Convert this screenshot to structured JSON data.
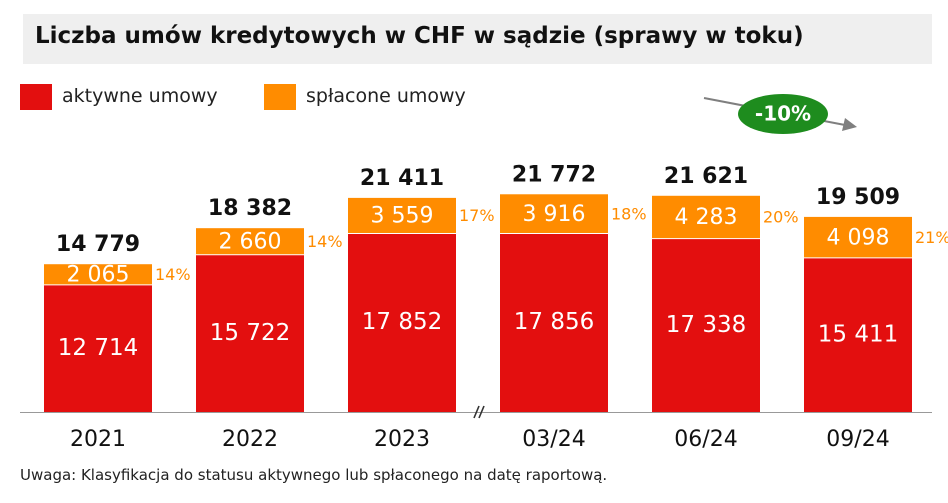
{
  "title": "Liczba umów kredytowych w CHF w sądzie (sprawy w toku)",
  "legend": [
    {
      "label": "aktywne umowy",
      "color": "#e30f0f"
    },
    {
      "label": "spłacone umowy",
      "color": "#ff8c00"
    }
  ],
  "trend_badge": {
    "label": "-10%",
    "color": "#1e8c1e"
  },
  "note": "Uwaga: Klasyfikacja do statusu aktywnego lub spłaconego na datę raportową.",
  "chart_data": {
    "type": "bar",
    "stacked": true,
    "categories": [
      "2021",
      "2022",
      "2023",
      "03/24",
      "06/24",
      "09/24"
    ],
    "series": [
      {
        "name": "aktywne umowy",
        "color": "#e30f0f",
        "values": [
          12714,
          15722,
          17852,
          17856,
          17338,
          15411
        ],
        "labels": [
          "12 714",
          "15 722",
          "17 852",
          "17 856",
          "17 338",
          "15 411"
        ]
      },
      {
        "name": "spłacone umowy",
        "color": "#ff8c00",
        "values": [
          2065,
          2660,
          3559,
          3916,
          4283,
          4098
        ],
        "labels": [
          "2 065",
          "2 660",
          "3 559",
          "3 916",
          "4 283",
          "4 098"
        ]
      }
    ],
    "totals": [
      "14 779",
      "18 382",
      "21 411",
      "21 772",
      "21 621",
      "19 509"
    ],
    "share_labels": [
      "14%",
      "14%",
      "17%",
      "18%",
      "20%",
      "21%"
    ],
    "axis_break_between": [
      "2023",
      "03/24"
    ],
    "xlabel": "",
    "ylabel": "",
    "ylim": [
      0,
      25000
    ],
    "grid": false,
    "legend_position": "top-left"
  }
}
